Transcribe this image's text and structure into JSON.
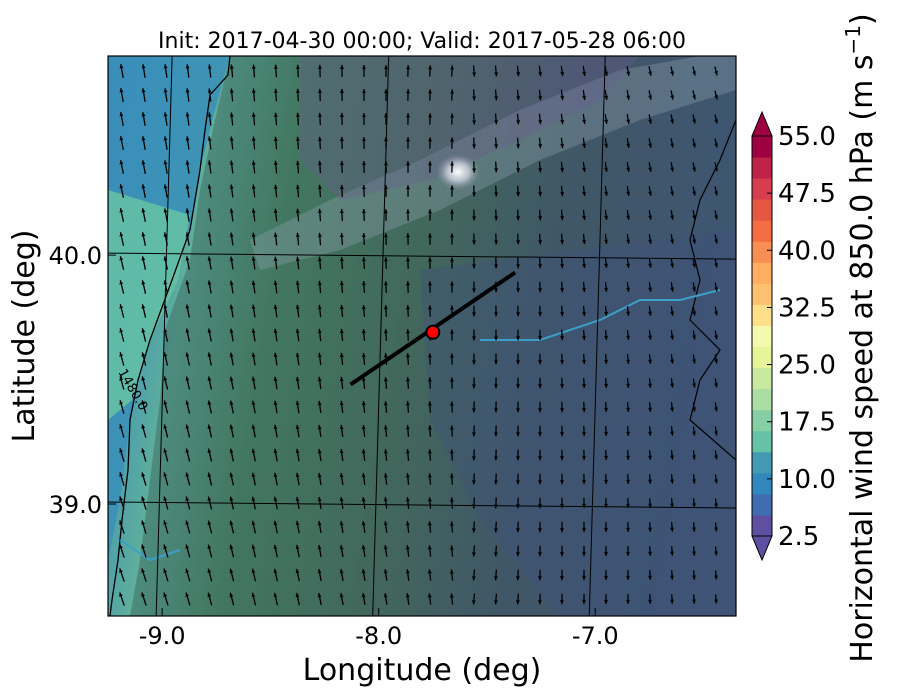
{
  "title": "Init: 2017-04-30 00:00; Valid: 2017-05-28 06:00",
  "x_axis": {
    "label": "Longitude (deg)",
    "ticks": [
      "-9.0",
      "-8.0",
      "-7.0"
    ],
    "values": [
      -9.0,
      -8.0,
      -7.0
    ],
    "range": [
      -9.25,
      -6.35
    ]
  },
  "y_axis": {
    "label": "Latitude (deg)",
    "ticks": [
      "40.0",
      "39.0"
    ],
    "values": [
      40.0,
      39.0
    ],
    "range": [
      38.55,
      40.8
    ]
  },
  "colorbar": {
    "label_text": "Horizontal wind speed at 850.0 hPa (m s",
    "label_exp": "−1",
    "label_close": ")",
    "tick_labels": [
      "55.0",
      "47.5",
      "40.0",
      "32.5",
      "25.0",
      "17.5",
      "10.0",
      "2.5"
    ],
    "colors": [
      "#5e4fa2",
      "#3f6db0",
      "#3288bd",
      "#459ab3",
      "#66c2a5",
      "#86cfa5",
      "#abdda4",
      "#cae9a0",
      "#e6f598",
      "#f4faad",
      "#fee08b",
      "#fdc06e",
      "#fdae61",
      "#f88e53",
      "#f46d43",
      "#e45743",
      "#d53e4f",
      "#be2448",
      "#9e0142"
    ],
    "under_color": "#5e4fa2",
    "over_color": "#9e0142"
  },
  "contour_label": "1480.0",
  "cross_section": {
    "start": [
      -8.13,
      39.48
    ],
    "end": [
      -7.37,
      39.93
    ],
    "point": [
      -7.75,
      39.69
    ],
    "point_color": "#ff0000"
  },
  "colors": {
    "land_tint": "#3b5b52",
    "frame": "#000000"
  }
}
